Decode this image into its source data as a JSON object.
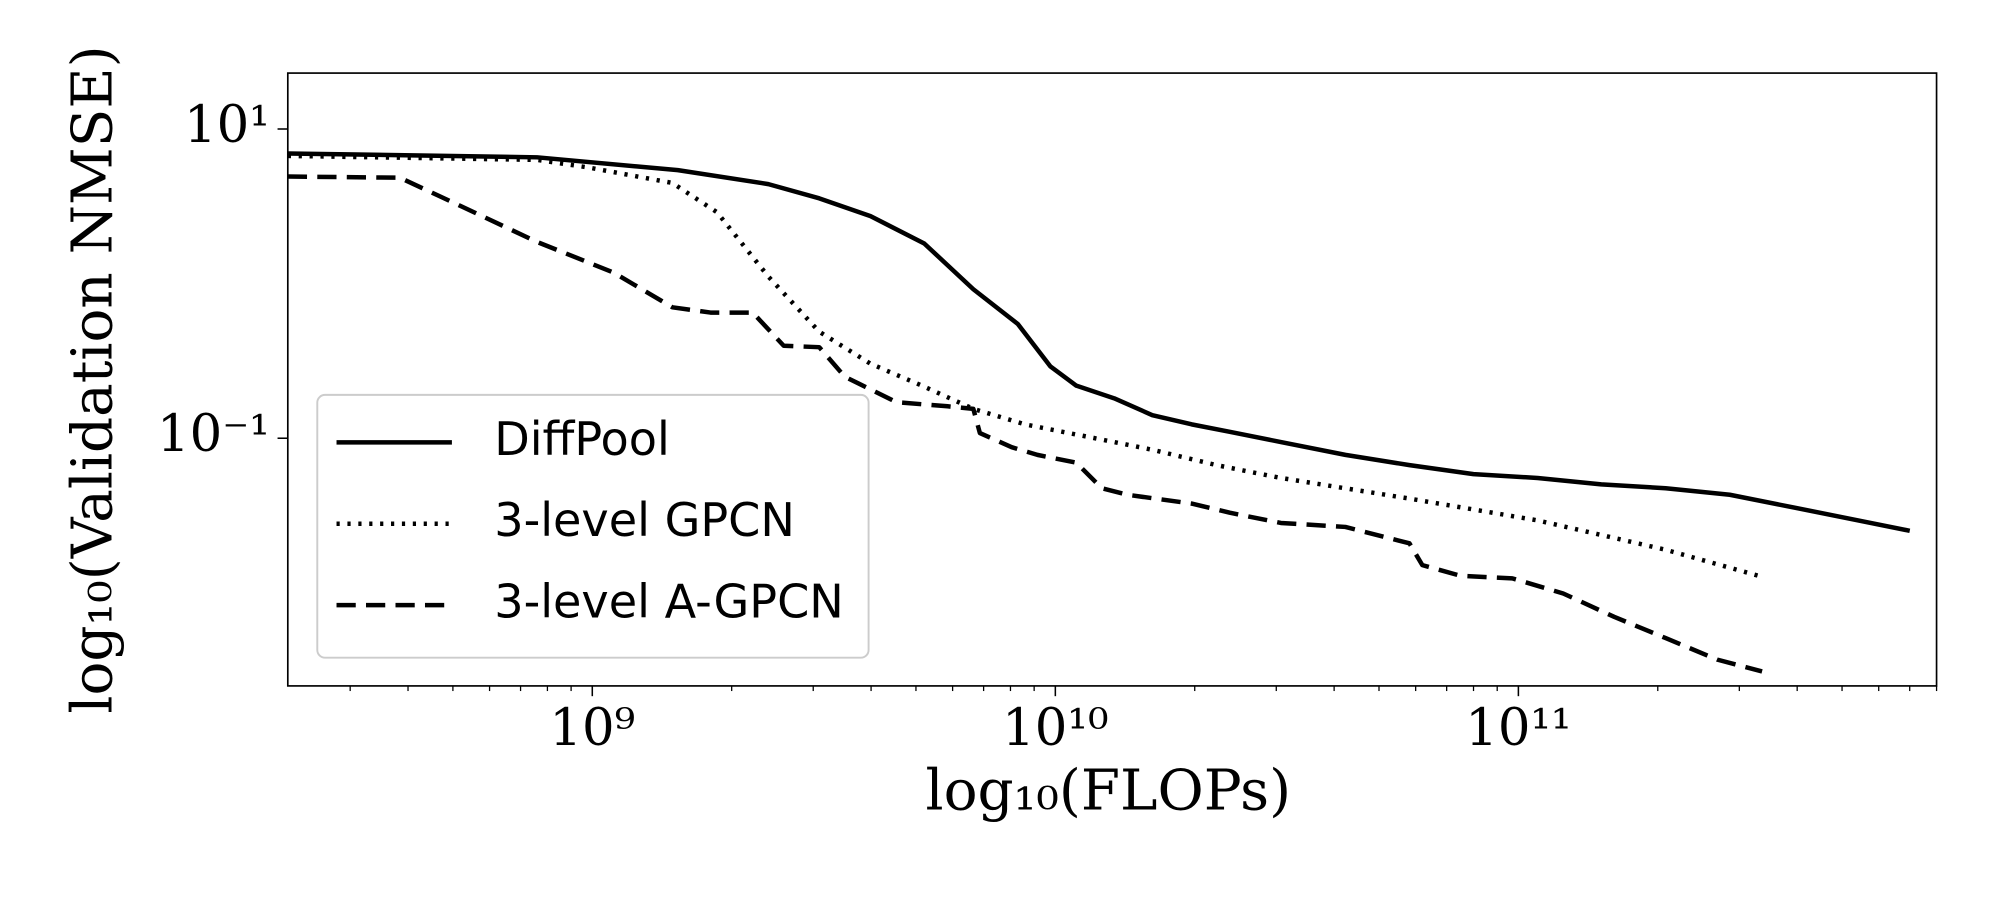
{
  "chart_data": {
    "type": "line",
    "xlabel": "log₁₀(FLOPs)",
    "ylabel": "log₁₀(Validation NMSE)",
    "xscale": "log",
    "yscale": "log",
    "xlim": [
      220000000.0,
      800000000000.0
    ],
    "ylim": [
      0.0025,
      23
    ],
    "xticks": [
      {
        "value": 1000000000.0,
        "label": "10⁹"
      },
      {
        "value": 10000000000.0,
        "label": "10¹⁰"
      },
      {
        "value": 100000000000.0,
        "label": "10¹¹"
      }
    ],
    "yticks": [
      {
        "value": 0.1,
        "label": "10⁻¹"
      },
      {
        "value": 10,
        "label": "10¹"
      }
    ],
    "grid": false,
    "legend": "lower left",
    "series": [
      {
        "name": "DiffPool",
        "color": "#000000",
        "style": "solid",
        "x": [
          220000000.0,
          760000000.0,
          1530000000.0,
          2400000000.0,
          3090000000.0,
          3990000000.0,
          5210000000.0,
          6650000000.0,
          8300000000.0,
          9750000000.0,
          11100000000.0,
          13400000000.0,
          16200000000.0,
          19700000000.0,
          23800000000.0,
          30700000000.0,
          42300000000.0,
          58200000000.0,
          80000000000.0,
          110000000000.0,
          151000000000.0,
          208000000000.0,
          286000000000.0,
          394000000000.0,
          542000000000.0,
          700000000000.0
        ],
        "values": [
          6.95,
          6.56,
          5.42,
          4.4,
          3.56,
          2.73,
          1.82,
          0.92,
          0.548,
          0.292,
          0.219,
          0.181,
          0.141,
          0.123,
          0.11,
          0.0944,
          0.078,
          0.067,
          0.0586,
          0.0553,
          0.0503,
          0.0475,
          0.0431,
          0.0356,
          0.0294,
          0.0252
        ]
      },
      {
        "name": "3-level GPCN",
        "color": "#000000",
        "style": "dotted",
        "x": [
          220000000.0,
          760000000.0,
          980000000.0,
          1490000000.0,
          1860000000.0,
          2400000000.0,
          3090000000.0,
          3990000000.0,
          5150000000.0,
          6650000000.0,
          8600000000.0,
          11800000000.0,
          16200000000.0,
          22300000000.0,
          30700000000.0,
          58200000000.0,
          110000000000.0,
          208000000000.0,
          330000000000.0
        ],
        "values": [
          6.7,
          6.32,
          5.64,
          4.48,
          2.89,
          1.11,
          0.489,
          0.303,
          0.219,
          0.155,
          0.123,
          0.102,
          0.0842,
          0.067,
          0.0553,
          0.0407,
          0.0294,
          0.019,
          0.0129
        ]
      },
      {
        "name": "3-level A-GPCN",
        "color": "#000000",
        "style": "dashed",
        "x": [
          220000000.0,
          384000000.0,
          519000000.0,
          760000000.0,
          1110000000.0,
          1490000000.0,
          1800000000.0,
          2220000000.0,
          2590000000.0,
          3090000000.0,
          3510000000.0,
          4540000000.0,
          5850000000.0,
          6650000000.0,
          6870000000.0,
          8050000000.0,
          9150000000.0,
          11100000000.0,
          12600000000.0,
          14300000000.0,
          19700000000.0,
          23800000000.0,
          30700000000.0,
          42300000000.0,
          58200000000.0,
          62000000000.0,
          75000000000.0,
          97000000000.0,
          125000000000.0,
          161000000000.0,
          208000000000.0,
          269000000000.0,
          336000000000.0
        ],
        "values": [
          4.93,
          4.84,
          3.18,
          1.86,
          1.18,
          0.702,
          0.65,
          0.65,
          0.396,
          0.388,
          0.25,
          0.171,
          0.161,
          0.155,
          0.108,
          0.0875,
          0.078,
          0.0695,
          0.0475,
          0.0431,
          0.0378,
          0.033,
          0.0283,
          0.0267,
          0.0209,
          0.0151,
          0.0129,
          0.0124,
          0.0099,
          0.007,
          0.0051,
          0.0037,
          0.0031
        ]
      }
    ]
  }
}
